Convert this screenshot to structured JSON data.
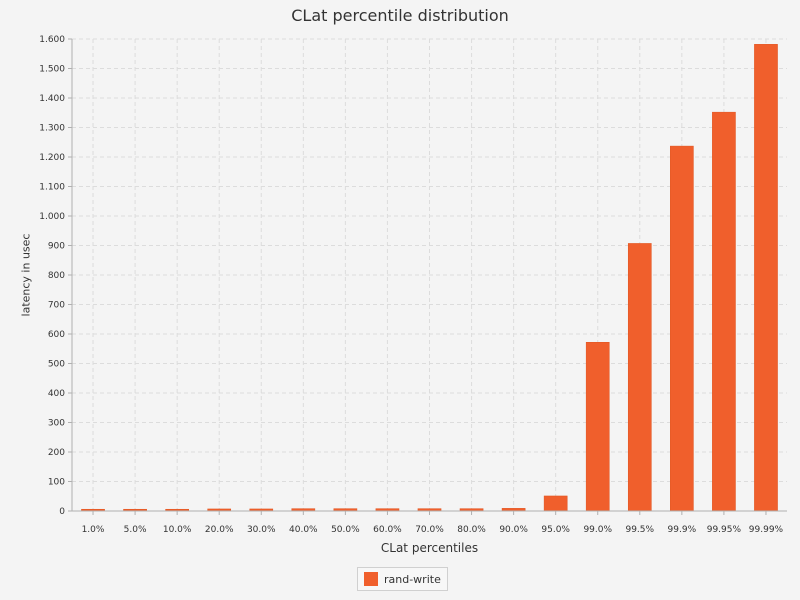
{
  "chart_data": {
    "type": "bar",
    "title": "CLat percentile distribution",
    "xlabel": "CLat percentiles",
    "ylabel": "latency in usec",
    "categories": [
      "1.0%",
      "5.0%",
      "10.0%",
      "20.0%",
      "30.0%",
      "40.0%",
      "50.0%",
      "60.0%",
      "70.0%",
      "80.0%",
      "90.0%",
      "95.0%",
      "99.0%",
      "99.5%",
      "99.9%",
      "99.95%",
      "99.99%"
    ],
    "series": [
      {
        "name": "rand-write",
        "color": "#f05f2c",
        "values": [
          6,
          6,
          6,
          7,
          7,
          8,
          8,
          8,
          8,
          8,
          9,
          51,
          572,
          907,
          1237,
          1352,
          1582
        ]
      }
    ],
    "ylim": [
      0,
      1600
    ],
    "yticks": [
      0,
      100,
      200,
      300,
      400,
      500,
      600,
      700,
      800,
      900,
      1000,
      1100,
      1200,
      1300,
      1400,
      1500,
      1600
    ],
    "ytick_labels": [
      "0",
      "100",
      "200",
      "300",
      "400",
      "500",
      "600",
      "700",
      "800",
      "900",
      "1.000",
      "1.100",
      "1.200",
      "1.300",
      "1.400",
      "1.500",
      "1.600"
    ],
    "grid": true,
    "legend_position": "bottom-center"
  }
}
